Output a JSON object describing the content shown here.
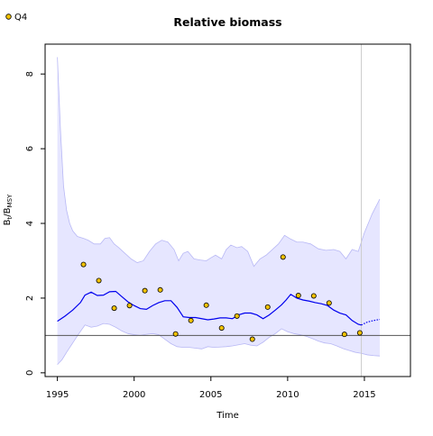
{
  "chart_data": {
    "type": "line",
    "title": "Relative biomass",
    "xlabel": "Time",
    "ylabel_main": "B",
    "ylabel_sub1": "t",
    "ylabel_sep": "/B",
    "ylabel_sub2": "MSY",
    "xlim": [
      1994.2,
      2018.0
    ],
    "ylim": [
      -0.1,
      8.8
    ],
    "x_ticks": [
      1995,
      2000,
      2005,
      2010,
      2015
    ],
    "y_ticks": [
      0,
      2,
      4,
      6,
      8
    ],
    "reference_line_y": 1,
    "vertical_line_x": 2014.8,
    "legend": {
      "placement": "top-left",
      "entries": [
        {
          "label": "Q4",
          "marker": "circle",
          "color": "#f2c200"
        }
      ]
    },
    "colors": {
      "estimate_line": "#0000ee",
      "band_fill": "#e6e6ff",
      "band_edge": "#b8b8f5",
      "reference_line": "#555555",
      "vertical_line": "#cccccc",
      "points_fill": "#f2c200",
      "points_edge": "#000000"
    },
    "series": [
      {
        "role": "estimate",
        "x": [
          1995.0,
          1995.5,
          1996.0,
          1996.5,
          1996.8,
          1997.2,
          1997.6,
          1998.0,
          1998.4,
          1998.8,
          1999.2,
          1999.6,
          2000.0,
          2000.4,
          2000.8,
          2001.2,
          2001.6,
          2002.0,
          2002.4,
          2002.8,
          2003.2,
          2003.6,
          2004.0,
          2004.4,
          2004.8,
          2005.2,
          2005.6,
          2006.0,
          2006.4,
          2006.8,
          2007.2,
          2007.6,
          2008.0,
          2008.4,
          2008.8,
          2009.2,
          2009.6,
          2009.9,
          2010.2,
          2010.6,
          2011.0,
          2011.4,
          2011.8,
          2012.2,
          2012.6,
          2013.0,
          2013.4,
          2013.8,
          2014.2,
          2014.6,
          2014.8
        ],
        "values": [
          1.38,
          1.52,
          1.68,
          1.88,
          2.08,
          2.16,
          2.07,
          2.08,
          2.17,
          2.18,
          2.04,
          1.9,
          1.8,
          1.72,
          1.7,
          1.8,
          1.88,
          1.93,
          1.93,
          1.75,
          1.5,
          1.48,
          1.48,
          1.45,
          1.42,
          1.44,
          1.47,
          1.47,
          1.45,
          1.55,
          1.6,
          1.6,
          1.55,
          1.45,
          1.55,
          1.68,
          1.82,
          1.95,
          2.1,
          2.0,
          1.95,
          1.92,
          1.88,
          1.85,
          1.8,
          1.68,
          1.6,
          1.55,
          1.4,
          1.3,
          1.28
        ]
      },
      {
        "role": "forecast",
        "x": [
          2014.8,
          2015.2,
          2015.6,
          2016.0
        ],
        "values": [
          1.28,
          1.36,
          1.4,
          1.43
        ]
      },
      {
        "role": "upper_band",
        "x": [
          1995.0,
          1995.2,
          1995.4,
          1995.6,
          1995.8,
          1996.0,
          1996.3,
          1996.7,
          1997.0,
          1997.4,
          1997.8,
          1998.1,
          1998.4,
          1998.7,
          1999.0,
          1999.4,
          1999.8,
          2000.2,
          2000.6,
          2001.0,
          2001.4,
          2001.8,
          2002.2,
          2002.6,
          2002.9,
          2003.2,
          2003.5,
          2003.9,
          2004.3,
          2004.7,
          2005.0,
          2005.3,
          2005.7,
          2006.0,
          2006.3,
          2006.7,
          2007.0,
          2007.4,
          2007.8,
          2008.2,
          2008.6,
          2009.0,
          2009.4,
          2009.8,
          2010.2,
          2010.6,
          2011.0,
          2011.5,
          2012.0,
          2012.5,
          2013.0,
          2013.4,
          2013.8,
          2014.2,
          2014.6,
          2015.0,
          2015.5,
          2016.0
        ],
        "values": [
          8.45,
          6.5,
          5.0,
          4.35,
          4.0,
          3.8,
          3.65,
          3.6,
          3.55,
          3.45,
          3.45,
          3.6,
          3.62,
          3.45,
          3.35,
          3.2,
          3.05,
          2.95,
          3.0,
          3.25,
          3.45,
          3.55,
          3.5,
          3.3,
          3.0,
          3.2,
          3.25,
          3.05,
          3.02,
          3.0,
          3.08,
          3.15,
          3.05,
          3.3,
          3.42,
          3.35,
          3.38,
          3.25,
          2.85,
          3.05,
          3.15,
          3.3,
          3.45,
          3.68,
          3.58,
          3.5,
          3.5,
          3.45,
          3.32,
          3.28,
          3.3,
          3.25,
          3.05,
          3.3,
          3.25,
          3.75,
          4.25,
          4.65
        ]
      },
      {
        "role": "lower_band",
        "x": [
          1995.0,
          1995.3,
          1995.6,
          1996.0,
          1996.4,
          1996.8,
          1997.2,
          1997.6,
          1998.0,
          1998.4,
          1998.8,
          1999.2,
          1999.6,
          2000.0,
          2000.4,
          2000.8,
          2001.2,
          2001.6,
          2002.0,
          2002.4,
          2002.8,
          2003.2,
          2003.6,
          2004.0,
          2004.4,
          2004.8,
          2005.2,
          2005.6,
          2006.0,
          2006.4,
          2006.8,
          2007.2,
          2007.6,
          2008.0,
          2008.4,
          2008.8,
          2009.2,
          2009.6,
          2010.0,
          2010.4,
          2010.8,
          2011.2,
          2011.6,
          2012.0,
          2012.4,
          2012.8,
          2013.2,
          2013.6,
          2014.0,
          2014.4,
          2014.8,
          2015.2,
          2015.6,
          2016.0
        ],
        "values": [
          0.22,
          0.35,
          0.55,
          0.8,
          1.05,
          1.28,
          1.22,
          1.25,
          1.32,
          1.3,
          1.22,
          1.12,
          1.05,
          1.02,
          1.0,
          1.03,
          1.05,
          1.02,
          0.9,
          0.78,
          0.7,
          0.68,
          0.68,
          0.66,
          0.64,
          0.7,
          0.68,
          0.69,
          0.7,
          0.72,
          0.75,
          0.78,
          0.74,
          0.72,
          0.82,
          0.95,
          1.05,
          1.18,
          1.1,
          1.05,
          1.02,
          0.98,
          0.92,
          0.85,
          0.8,
          0.78,
          0.72,
          0.65,
          0.6,
          0.55,
          0.52,
          0.48,
          0.46,
          0.45
        ]
      },
      {
        "role": "observed_Q4",
        "x": [
          1996.7,
          1997.7,
          1998.7,
          1999.7,
          2000.7,
          2001.7,
          2002.7,
          2003.7,
          2004.7,
          2005.7,
          2006.7,
          2007.7,
          2008.7,
          2009.7,
          2010.7,
          2011.7,
          2012.7,
          2013.7,
          2014.7
        ],
        "values": [
          2.9,
          2.47,
          1.73,
          1.8,
          2.2,
          2.22,
          1.04,
          1.4,
          1.81,
          1.2,
          1.52,
          0.9,
          1.76,
          3.1,
          2.07,
          2.06,
          1.87,
          1.03,
          1.07
        ]
      }
    ]
  }
}
